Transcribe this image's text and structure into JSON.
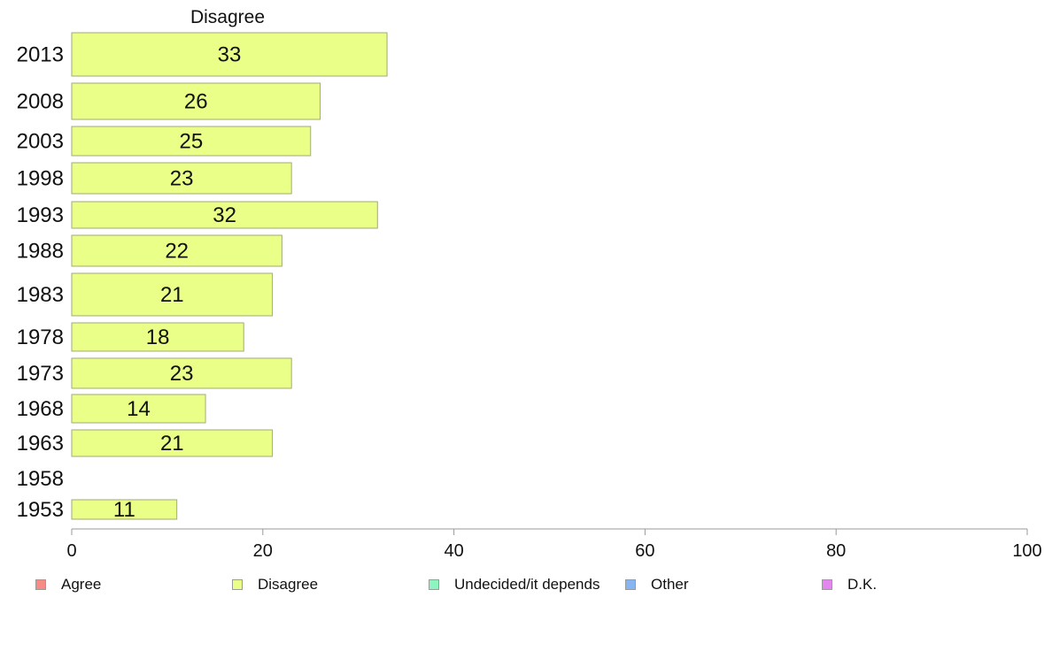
{
  "chart_data": {
    "type": "bar",
    "orientation": "horizontal",
    "title": "Disagree",
    "categories": [
      "2013",
      "2008",
      "2003",
      "1998",
      "1993",
      "1988",
      "1983",
      "1978",
      "1973",
      "1968",
      "1963",
      "1958",
      "1953"
    ],
    "values": [
      33,
      26,
      25,
      23,
      32,
      22,
      21,
      18,
      23,
      14,
      21,
      null,
      11
    ],
    "xlim": [
      0,
      100
    ],
    "xticks": [
      0,
      20,
      40,
      60,
      80,
      100
    ],
    "grid": false,
    "bar_color": "#e9ff88",
    "bar_edge_color": "#a3aa7a",
    "legend": {
      "placement": "bottom",
      "items": [
        {
          "label": "Agree",
          "color": "#f68c85"
        },
        {
          "label": "Disagree",
          "color": "#e9ff88"
        },
        {
          "label": "Undecided/it depends",
          "color": "#8cf5bf"
        },
        {
          "label": "Other",
          "color": "#85b5f3"
        },
        {
          "label": "D.K.",
          "color": "#e585f0"
        }
      ]
    }
  }
}
